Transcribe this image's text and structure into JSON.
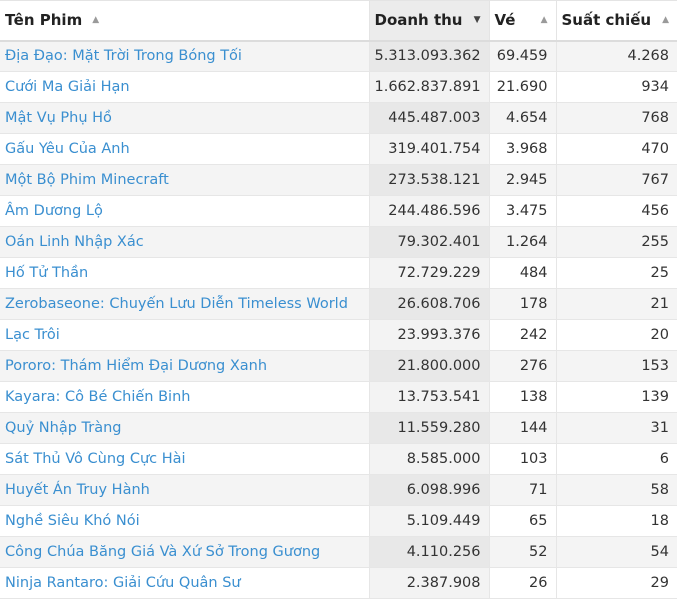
{
  "table": {
    "columns": [
      {
        "label": "Tên Phim",
        "arrow": "▲"
      },
      {
        "label": "Doanh thu",
        "arrow": "▼"
      },
      {
        "label": "Vé",
        "arrow": "▲"
      },
      {
        "label": "Suất chiếu",
        "arrow": "▲"
      }
    ],
    "rows": [
      {
        "title": "Địa Đạo: Mặt Trời Trong Bóng Tối",
        "revenue": "5.313.093.362",
        "tickets": "69.459",
        "showtimes": "4.268"
      },
      {
        "title": "Cưới Ma Giải Hạn",
        "revenue": "1.662.837.891",
        "tickets": "21.690",
        "showtimes": "934"
      },
      {
        "title": "Mật Vụ Phụ Hồ",
        "revenue": "445.487.003",
        "tickets": "4.654",
        "showtimes": "768"
      },
      {
        "title": "Gấu Yêu Của Anh",
        "revenue": "319.401.754",
        "tickets": "3.968",
        "showtimes": "470"
      },
      {
        "title": "Một Bộ Phim Minecraft",
        "revenue": "273.538.121",
        "tickets": "2.945",
        "showtimes": "767"
      },
      {
        "title": "Âm Dương Lộ",
        "revenue": "244.486.596",
        "tickets": "3.475",
        "showtimes": "456"
      },
      {
        "title": "Oán Linh Nhập Xác",
        "revenue": "79.302.401",
        "tickets": "1.264",
        "showtimes": "255"
      },
      {
        "title": "Hố Tử Thần",
        "revenue": "72.729.229",
        "tickets": "484",
        "showtimes": "25"
      },
      {
        "title": "Zerobaseone: Chuyến Lưu Diễn Timeless World",
        "revenue": "26.608.706",
        "tickets": "178",
        "showtimes": "21"
      },
      {
        "title": "Lạc Trôi",
        "revenue": "23.993.376",
        "tickets": "242",
        "showtimes": "20"
      },
      {
        "title": "Pororo: Thám Hiểm Đại Dương Xanh",
        "revenue": "21.800.000",
        "tickets": "276",
        "showtimes": "153"
      },
      {
        "title": "Kayara: Cô Bé Chiến Binh",
        "revenue": "13.753.541",
        "tickets": "138",
        "showtimes": "139"
      },
      {
        "title": "Quỷ Nhập Tràng",
        "revenue": "11.559.280",
        "tickets": "144",
        "showtimes": "31"
      },
      {
        "title": "Sát Thủ Vô Cùng Cực Hài",
        "revenue": "8.585.000",
        "tickets": "103",
        "showtimes": "6"
      },
      {
        "title": "Huyết Án Truy Hành",
        "revenue": "6.098.996",
        "tickets": "71",
        "showtimes": "58"
      },
      {
        "title": "Nghề Siêu Khó Nói",
        "revenue": "5.109.449",
        "tickets": "65",
        "showtimes": "18"
      },
      {
        "title": "Công Chúa Băng Giá Và Xứ Sở Trong Gương",
        "revenue": "4.110.256",
        "tickets": "52",
        "showtimes": "54"
      },
      {
        "title": "Ninja Rantaro: Giải Cứu Quân Sư",
        "revenue": "2.387.908",
        "tickets": "26",
        "showtimes": "29"
      }
    ]
  }
}
